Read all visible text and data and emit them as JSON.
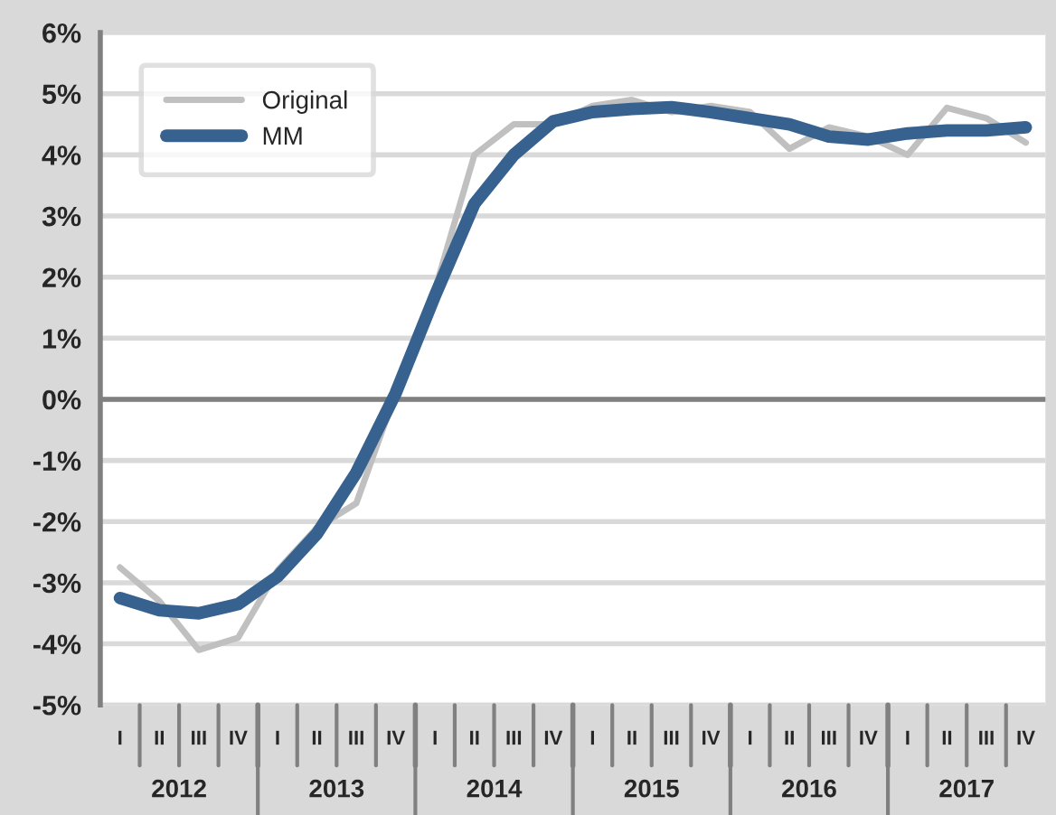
{
  "chart_data": {
    "type": "line",
    "categories": [
      "I",
      "II",
      "III",
      "IV",
      "I",
      "II",
      "III",
      "IV",
      "I",
      "II",
      "III",
      "IV",
      "I",
      "II",
      "III",
      "IV",
      "I",
      "II",
      "III",
      "IV",
      "I",
      "II",
      "III",
      "IV"
    ],
    "series": [
      {
        "name": "Original",
        "color": "#c0c0c0",
        "values": [
          -2.75,
          -3.3,
          -4.1,
          -3.9,
          -2.8,
          -2.1,
          -1.7,
          0.1,
          1.8,
          4.0,
          4.5,
          4.5,
          4.8,
          4.9,
          4.7,
          4.8,
          4.7,
          4.1,
          4.45,
          4.3,
          4.0,
          4.77,
          4.6,
          4.2
        ]
      },
      {
        "name": "MM",
        "color": "#37628f",
        "values": [
          -3.25,
          -3.45,
          -3.5,
          -3.35,
          -2.9,
          -2.2,
          -1.2,
          0.1,
          1.7,
          3.2,
          4.0,
          4.55,
          4.7,
          4.75,
          4.78,
          4.7,
          4.6,
          4.5,
          4.3,
          4.25,
          4.35,
          4.4,
          4.4,
          4.45
        ]
      }
    ],
    "annotations": [
      "2012",
      "2013",
      "2014",
      "2015",
      "2016",
      "2017"
    ],
    "ylim": [
      -5,
      6
    ],
    "yticks": [
      {
        "value": -5,
        "label": "-5%"
      },
      {
        "value": -4,
        "label": "-4%"
      },
      {
        "value": -3,
        "label": "-3%"
      },
      {
        "value": -2,
        "label": "-2%"
      },
      {
        "value": -1,
        "label": "-1%"
      },
      {
        "value": 0,
        "label": "0%"
      },
      {
        "value": 1,
        "label": "1%"
      },
      {
        "value": 2,
        "label": "2%"
      },
      {
        "value": 3,
        "label": "3%"
      },
      {
        "value": 4,
        "label": "4%"
      },
      {
        "value": 5,
        "label": "5%"
      },
      {
        "value": 6,
        "label": "6%"
      }
    ],
    "ref_lines": [
      {
        "axis": "y",
        "value": 0,
        "color": "#808080"
      }
    ],
    "grid": "y",
    "legend": "top left",
    "line_style": "solid",
    "marker": "none"
  }
}
